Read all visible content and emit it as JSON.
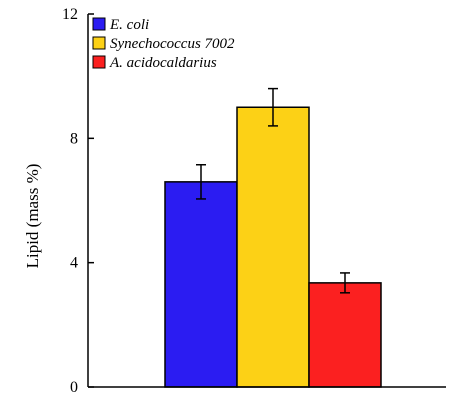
{
  "chart_data": {
    "type": "bar",
    "title": "",
    "xlabel": "",
    "ylabel": "Lipid (mass %)",
    "ylim": [
      0,
      12
    ],
    "yticks": [
      0,
      4,
      8,
      12
    ],
    "grid": false,
    "legend_position": "top-left",
    "series": [
      {
        "name": "E. coli",
        "value": 6.6,
        "error": 0.55,
        "color": "#2b1cf2"
      },
      {
        "name": "Synechococcus 7002",
        "value": 9.0,
        "error": 0.6,
        "color": "#fcd116"
      },
      {
        "name": "A. acidocaldarius",
        "value": 3.35,
        "error": 0.32,
        "color": "#fb2020"
      }
    ]
  }
}
